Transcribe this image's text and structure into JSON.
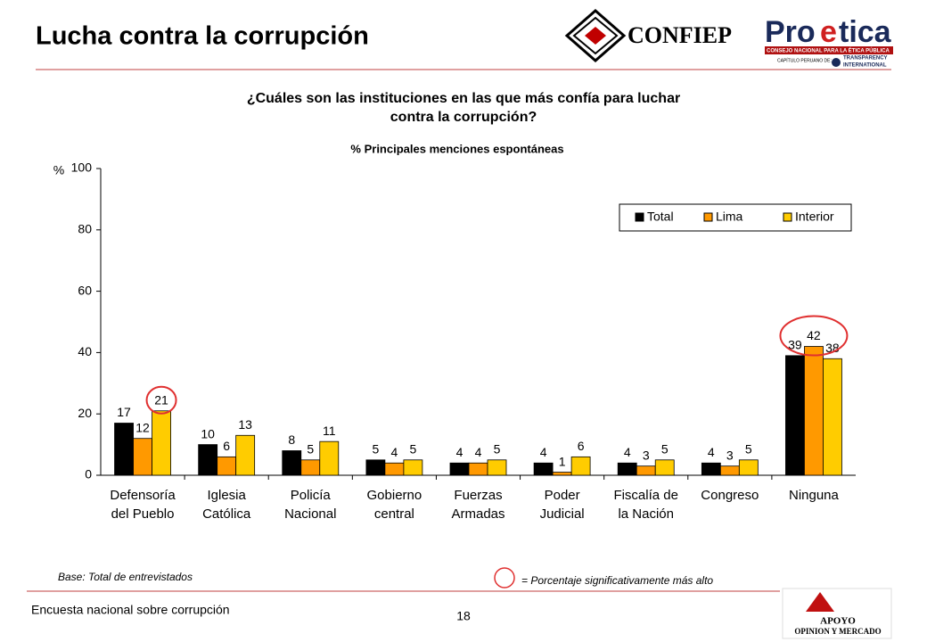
{
  "header": {
    "title": "Lucha contra la corrupción",
    "logos": {
      "confiep": "CONFIEP",
      "proetica_pro": "Pro",
      "proetica_e": "e",
      "proetica_tica": "tica",
      "proetica_sub": "CONSEJO NACIONAL PARA LA ÉTICA PÚBLICA",
      "capitulo": "CAPÍTULO PERUANO DE:",
      "ti1": "TRANSPARENCY",
      "ti2": "INTERNATIONAL"
    }
  },
  "chart_data": {
    "type": "bar",
    "title": [
      "¿Cuáles son las instituciones en las que más confía para luchar",
      "contra la corrupción?"
    ],
    "subtitle": "% Principales menciones espontáneas",
    "y_label": "%",
    "categories": [
      [
        "Defensoría",
        "del Pueblo"
      ],
      [
        "Iglesia",
        "Católica"
      ],
      [
        "Policía",
        "Nacional"
      ],
      [
        "Gobierno",
        "central"
      ],
      [
        "Fuerzas",
        "Armadas"
      ],
      [
        "Poder",
        "Judicial"
      ],
      [
        "Fiscalía de",
        "la Nación"
      ],
      [
        "Congreso"
      ],
      [
        "Ninguna"
      ]
    ],
    "series": [
      {
        "name": "Total",
        "color": "#000000",
        "values": [
          17,
          10,
          8,
          5,
          4,
          4,
          4,
          4,
          39
        ]
      },
      {
        "name": "Lima",
        "color": "#ff9900",
        "values": [
          12,
          6,
          5,
          4,
          4,
          1,
          3,
          3,
          42
        ]
      },
      {
        "name": "Interior",
        "color": "#ffcc00",
        "values": [
          21,
          13,
          11,
          5,
          5,
          6,
          5,
          5,
          38
        ]
      }
    ],
    "ylim": [
      0,
      100
    ],
    "yticks": [
      0,
      20,
      40,
      60,
      80,
      100
    ],
    "legend": "upper right",
    "highlight_color": "#e03030",
    "highlights": [
      {
        "category": 0,
        "series": [
          2
        ]
      },
      {
        "category": 8,
        "series": [
          0,
          1,
          2
        ]
      }
    ],
    "base_note": "Base: Total de entrevistados",
    "highlight_note": "= Porcentaje significativamente más alto"
  },
  "footer": {
    "survey": "Encuesta nacional sobre corrupción",
    "page": "18",
    "apoyo1": "APOYO",
    "apoyo2": "OPINION Y MERCADO"
  }
}
